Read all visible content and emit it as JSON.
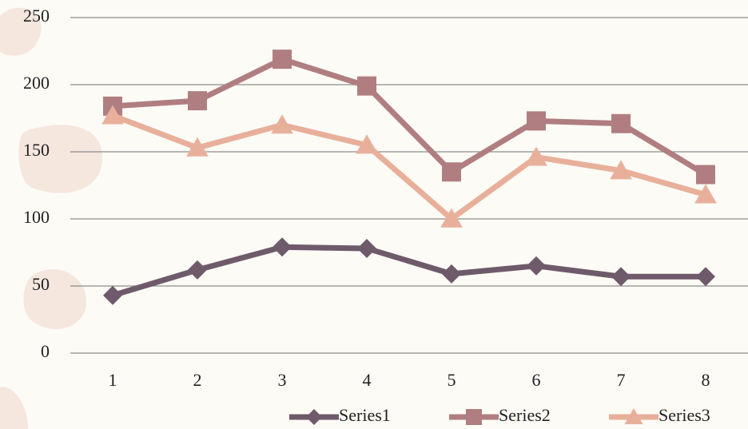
{
  "chart_data": {
    "type": "line",
    "categories": [
      "1",
      "2",
      "3",
      "4",
      "5",
      "6",
      "7",
      "8"
    ],
    "series": [
      {
        "name": "Series1",
        "color": "#6e5a6a",
        "marker": "diamond",
        "values": [
          43,
          62,
          79,
          78,
          59,
          65,
          57,
          57
        ]
      },
      {
        "name": "Series2",
        "color": "#b07e80",
        "marker": "square",
        "values": [
          184,
          188,
          219,
          199,
          135,
          173,
          171,
          133
        ]
      },
      {
        "name": "Series3",
        "color": "#e8b09a",
        "marker": "triangle",
        "values": [
          177,
          153,
          170,
          155,
          100,
          146,
          136,
          118
        ]
      }
    ],
    "ylim": [
      0,
      250
    ],
    "yticks": [
      0,
      50,
      100,
      150,
      200,
      250
    ],
    "grid": true,
    "legend": "bottom"
  }
}
